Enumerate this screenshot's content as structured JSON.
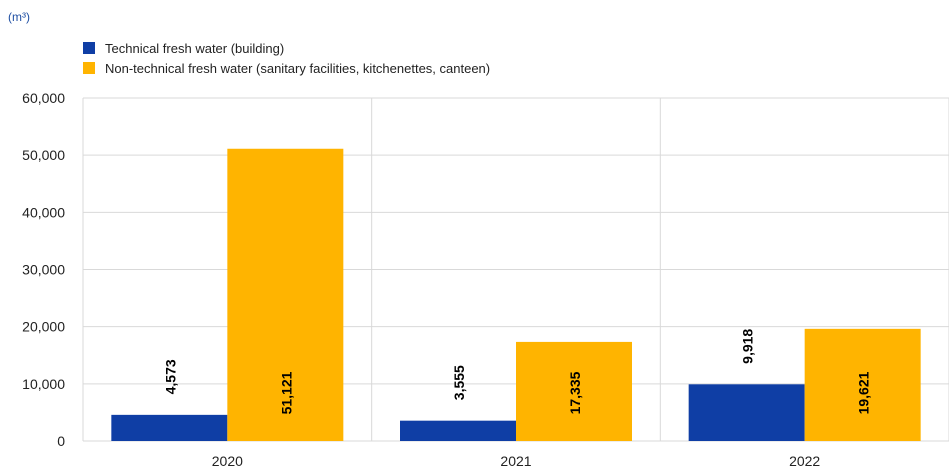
{
  "colors": {
    "series_0": "#0f3ea5",
    "series_1": "#ffb400",
    "unit_text": "#1f4fa3",
    "grid": "#d9d9d9",
    "text": "#222222",
    "data_label": "#000000"
  },
  "chart_data": {
    "type": "bar",
    "title": "",
    "unit_label": "(m³)",
    "xlabel": "",
    "ylabel": "",
    "categories": [
      "2020",
      "2021",
      "2022"
    ],
    "ylim": [
      0,
      60000
    ],
    "yticks": [
      0,
      10000,
      20000,
      30000,
      40000,
      50000,
      60000
    ],
    "ytick_labels": [
      "0",
      "10,000",
      "20,000",
      "30,000",
      "40,000",
      "50,000",
      "60,000"
    ],
    "grid": true,
    "legend_position": "top-left",
    "series": [
      {
        "name": "Technical fresh water (building)",
        "values": [
          4573,
          3555,
          9918
        ],
        "labels": [
          "4,573",
          "3,555",
          "9,918"
        ]
      },
      {
        "name": "Non-technical fresh water (sanitary facilities, kitchenettes, canteen)",
        "values": [
          51121,
          17335,
          19621
        ],
        "labels": [
          "51,121",
          "17,335",
          "19,621"
        ]
      }
    ]
  }
}
